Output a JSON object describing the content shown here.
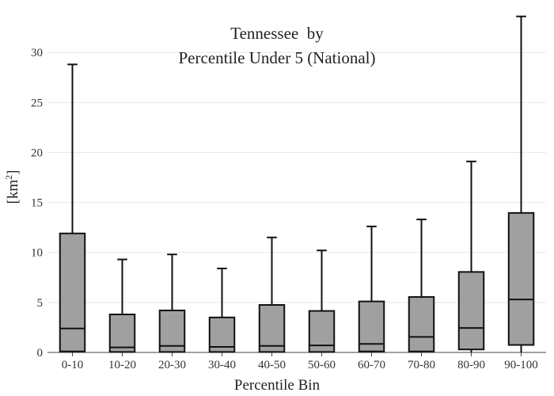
{
  "chart_data": {
    "type": "box",
    "title_lines": [
      "Tennessee  by",
      "Percentile Under 5 (National)"
    ],
    "xlabel": "Percentile Bin",
    "ylabel_base": "[km",
    "ylabel_sup": "2",
    "ylabel_end": "]",
    "ylim": [
      0,
      33.5
    ],
    "yticks": [
      "0",
      "5",
      "10",
      "15",
      "20",
      "25",
      "30"
    ],
    "grid": true,
    "box_fill": "#a0a0a0",
    "grid_color": "#e8e8e8",
    "categories": [
      "0-10",
      "10-20",
      "20-30",
      "30-40",
      "40-50",
      "50-60",
      "60-70",
      "70-80",
      "80-90",
      "90-100"
    ],
    "boxes": [
      {
        "min": 0.0,
        "q1": 0.1,
        "median": 2.4,
        "q3": 11.9,
        "max": 28.8
      },
      {
        "min": 0.0,
        "q1": 0.05,
        "median": 0.5,
        "q3": 3.8,
        "max": 9.3
      },
      {
        "min": 0.0,
        "q1": 0.05,
        "median": 0.65,
        "q3": 4.2,
        "max": 9.8
      },
      {
        "min": 0.0,
        "q1": 0.05,
        "median": 0.55,
        "q3": 3.5,
        "max": 8.4
      },
      {
        "min": 0.0,
        "q1": 0.05,
        "median": 0.65,
        "q3": 4.75,
        "max": 11.5
      },
      {
        "min": 0.0,
        "q1": 0.05,
        "median": 0.7,
        "q3": 4.15,
        "max": 10.2
      },
      {
        "min": 0.0,
        "q1": 0.1,
        "median": 0.85,
        "q3": 5.1,
        "max": 12.6
      },
      {
        "min": 0.0,
        "q1": 0.1,
        "median": 1.55,
        "q3": 5.55,
        "max": 13.3
      },
      {
        "min": 0.0,
        "q1": 0.3,
        "median": 2.45,
        "q3": 8.05,
        "max": 19.1
      },
      {
        "min": 0.0,
        "q1": 0.75,
        "median": 5.3,
        "q3": 13.95,
        "max": 33.6
      }
    ]
  }
}
